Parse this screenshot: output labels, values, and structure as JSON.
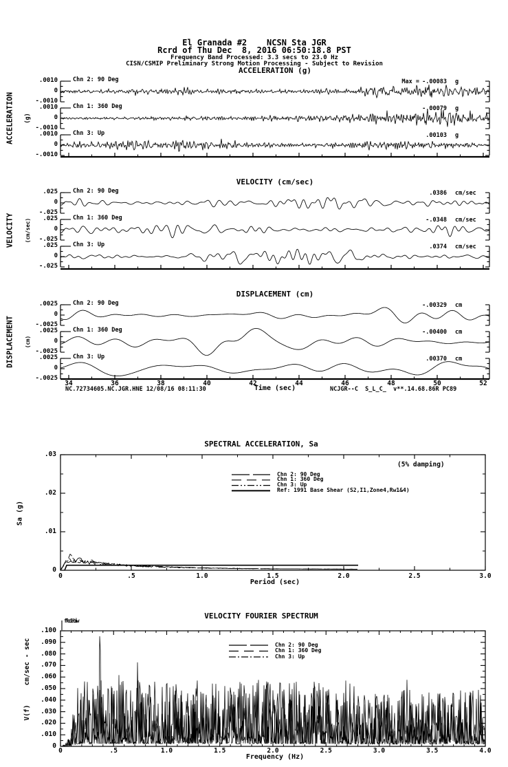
{
  "page": {
    "bg": "#ffffff",
    "fg": "#000000"
  },
  "header": {
    "station_line": "El Granada #2    NCSN Sta JGR",
    "record_line": "Rcrd of Thu Dec  8, 2016 06:50:18.8 PST",
    "band_line": "Frequency Band Processed: 3.3 secs to 23.0 Hz",
    "notice_line": "CISN/CSMIP Preliminary Strong Motion Processing - Subject to Revision"
  },
  "time_series": {
    "x_ticks": [
      "34",
      "36",
      "38",
      "40",
      "42",
      "44",
      "46",
      "48",
      "50",
      "52"
    ],
    "x_label": "Time (sec)",
    "footer_left": "NC.72734605.NC.JGR.HNE 12/08/16 08:11:30",
    "footer_right": "NCJGR--C  S_L_C_  v**.14.68.86R PC89",
    "panels": [
      {
        "title": "ACCELERATION (g)",
        "ylabel": "ACCELERATION",
        "yunit": "(g)",
        "ytick_top": ".0010",
        "ytick_zero": "0",
        "ytick_bot": "-.0010",
        "traces": [
          {
            "channel": "Chn 2: 90 Deg",
            "max_prefix": "Max =",
            "max_value": "-.00083",
            "max_unit": "g"
          },
          {
            "channel": "Chn 1: 360 Deg",
            "max_prefix": "",
            "max_value": "-.00079",
            "max_unit": "g"
          },
          {
            "channel": "Chn 3: Up",
            "max_prefix": "",
            "max_value": ".00103",
            "max_unit": "g"
          }
        ]
      },
      {
        "title": "VELOCITY (cm/sec)",
        "ylabel": "VELOCITY",
        "yunit": "(cm/sec)",
        "ytick_top": ".025",
        "ytick_zero": "0",
        "ytick_bot": "-.025",
        "traces": [
          {
            "channel": "Chn 2: 90 Deg",
            "max_prefix": "",
            "max_value": ".0386",
            "max_unit": "cm/sec"
          },
          {
            "channel": "Chn 1: 360 Deg",
            "max_prefix": "",
            "max_value": "-.0348",
            "max_unit": "cm/sec"
          },
          {
            "channel": "Chn 3: Up",
            "max_prefix": "",
            "max_value": ".0374",
            "max_unit": "cm/sec"
          }
        ]
      },
      {
        "title": "DISPLACEMENT (cm)",
        "ylabel": "DISPLACEMENT",
        "yunit": "(cm)",
        "ytick_top": ".0025",
        "ytick_zero": "0",
        "ytick_bot": "-.0025",
        "traces": [
          {
            "channel": "Chn 2: 90 Deg",
            "max_prefix": "",
            "max_value": "-.00329",
            "max_unit": "cm"
          },
          {
            "channel": "Chn 1: 360 Deg",
            "max_prefix": "",
            "max_value": "-.00400",
            "max_unit": "cm"
          },
          {
            "channel": "Chn 3: Up",
            "max_prefix": "",
            "max_value": ".00370",
            "max_unit": "cm"
          }
        ]
      }
    ]
  },
  "sa_chart": {
    "title": "SPECTRAL ACCELERATION, Sa",
    "damping_note": "(5% damping)",
    "ylabel": "Sa (g)",
    "y_ticks": [
      ".03",
      ".02",
      ".01",
      "0"
    ],
    "x_ticks": [
      "0",
      ".5",
      "1.0",
      "1.5",
      "2.0",
      "2.5",
      "3.0"
    ],
    "x_label": "Period (sec)",
    "legend": [
      {
        "label": "Chn 2: 90 Deg",
        "dash": "26,5"
      },
      {
        "label": "Chn 1: 360 Deg",
        "dash": "14,8"
      },
      {
        "label": "Chn 3: Up",
        "dash": "10,3,2,3,2,3"
      },
      {
        "label": "Ref: 1991 Base Shear (S2,I1,Zone4,Rw1&4)",
        "dash": ""
      }
    ]
  },
  "fourier_chart": {
    "title": "VELOCITY FOURIER SPECTRUM",
    "corner_labels": [
      "fcLow",
      "fcHi"
    ],
    "ylabel_unit": "cm/sec - sec",
    "ylabel_name": "V(f)",
    "y_ticks": [
      ".100",
      ".090",
      ".080",
      ".070",
      ".060",
      ".050",
      ".040",
      ".030",
      ".020",
      ".010",
      "0"
    ],
    "x_ticks": [
      "0",
      ".5",
      "1.0",
      "1.5",
      "2.0",
      "2.5",
      "3.0",
      "3.5",
      "4.0"
    ],
    "x_label": "Frequency (Hz)",
    "legend": [
      {
        "label": "Chn 2: 90 Deg",
        "dash": "26,5"
      },
      {
        "label": "Chn 1: 360 Deg",
        "dash": "14,8"
      },
      {
        "label": "Chn 3: Up",
        "dash": "10,3,2,3"
      }
    ]
  },
  "chart_data": [
    {
      "type": "line",
      "title": "ACCELERATION (g)",
      "xlabel": "Time (sec)",
      "xlim": [
        33.6,
        52.3
      ],
      "x_ticks": [
        34,
        36,
        38,
        40,
        42,
        44,
        46,
        48,
        50,
        52
      ],
      "ylim": [
        -0.001,
        0.001
      ],
      "units": "g",
      "series": [
        {
          "name": "Chn 2: 90 Deg",
          "peak": -0.00083
        },
        {
          "name": "Chn 1: 360 Deg",
          "peak": -0.00079
        },
        {
          "name": "Chn 3: Up",
          "peak": 0.00103
        }
      ],
      "note": "noise-like broadband traces, each on its own strip with ticks at +/-0.0010 g"
    },
    {
      "type": "line",
      "title": "VELOCITY (cm/sec)",
      "xlabel": "Time (sec)",
      "xlim": [
        33.6,
        52.3
      ],
      "x_ticks": [
        34,
        36,
        38,
        40,
        42,
        44,
        46,
        48,
        50,
        52
      ],
      "ylim": [
        -0.025,
        0.025
      ],
      "units": "cm/sec",
      "series": [
        {
          "name": "Chn 2: 90 Deg",
          "peak": 0.0386
        },
        {
          "name": "Chn 1: 360 Deg",
          "peak": -0.0348
        },
        {
          "name": "Chn 3: Up",
          "peak": 0.0374
        }
      ],
      "note": "oscillatory traces on strips with ticks at +/-0.025 cm/sec"
    },
    {
      "type": "line",
      "title": "DISPLACEMENT (cm)",
      "xlabel": "Time (sec)",
      "xlim": [
        33.6,
        52.3
      ],
      "x_ticks": [
        34,
        36,
        38,
        40,
        42,
        44,
        46,
        48,
        50,
        52
      ],
      "ylim": [
        -0.0025,
        0.0025
      ],
      "units": "cm",
      "series": [
        {
          "name": "Chn 2: 90 Deg",
          "peak": -0.00329
        },
        {
          "name": "Chn 1: 360 Deg",
          "peak": -0.004
        },
        {
          "name": "Chn 3: Up",
          "peak": 0.0037
        }
      ],
      "note": "smooth long-period traces; Chn 1 and Chn 3 swing beyond their strips near 40-45 sec"
    },
    {
      "type": "line",
      "title": "SPECTRAL ACCELERATION, Sa",
      "xlabel": "Period (sec)",
      "ylabel": "Sa (g)",
      "xlim": [
        0,
        3
      ],
      "ylim": [
        0,
        0.03
      ],
      "x_ticks": [
        0,
        0.5,
        1.0,
        1.5,
        2.0,
        2.5,
        3.0
      ],
      "y_ticks": [
        0.03,
        0.02,
        0.01,
        0
      ],
      "damping": "5% damping",
      "legend_position": "upper center",
      "legend": [
        "Chn 2: 90 Deg",
        "Chn 1: 360 Deg",
        "Chn 3: Up",
        "Ref: 1991 Base Shear (S2,I1,Zone4,Rw1&4)"
      ],
      "summary": "channel spectra peak about 0.003-0.0045 g between 0.07 and 0.35 sec, decay below 0.001 g past ~0.8 sec and end near 2.1 sec; reference curve is nearly flat around 0.0013 g"
    },
    {
      "type": "line",
      "title": "VELOCITY FOURIER SPECTRUM",
      "xlabel": "Frequency (Hz)",
      "ylabel": "V(f) cm/sec - sec",
      "xlim": [
        0,
        4
      ],
      "ylim": [
        0,
        0.1
      ],
      "x_ticks": [
        0,
        0.5,
        1.0,
        1.5,
        2.0,
        2.5,
        3.0,
        3.5,
        4.0
      ],
      "y_ticks": [
        0.1,
        0.09,
        0.08,
        0.07,
        0.06,
        0.05,
        0.04,
        0.03,
        0.02,
        0.01,
        0
      ],
      "legend": [
        "Chn 2: 90 Deg",
        "Chn 1: 360 Deg",
        "Chn 3: Up"
      ],
      "summary": "dense spiky spectra averaging ~0.01-0.03 with many peaks of 0.04-0.06 between 0.3 and 2.5 Hz and a maximum spike of ~0.09 near 0.37 Hz; amplitude falls to zero below ~0.15 Hz"
    }
  ]
}
